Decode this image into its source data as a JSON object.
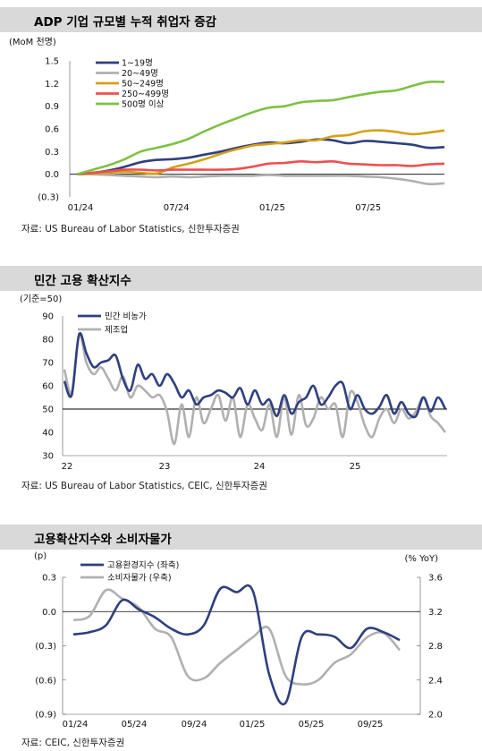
{
  "chart_data": [
    {
      "type": "line",
      "title": "ADP 기업 규모별 누적 취업자 증감",
      "unit_label": "(MoM 천명)",
      "x_ticks": [
        "01/24",
        "07/24",
        "01/25",
        "07/25"
      ],
      "y_ticks": [
        "1.5",
        "1.2",
        "0.9",
        "0.6",
        "0.3",
        "0.0",
        "(0.3)"
      ],
      "ylim": [
        -0.3,
        1.5
      ],
      "legend_position": "top-left",
      "series": [
        {
          "name": "1~19명",
          "color": "#2f3f7f",
          "values": [
            0.0,
            0.02,
            0.05,
            0.1,
            0.16,
            0.19,
            0.2,
            0.22,
            0.26,
            0.3,
            0.35,
            0.39,
            0.42,
            0.41,
            0.43,
            0.46,
            0.45,
            0.41,
            0.44,
            0.43,
            0.41,
            0.39,
            0.35,
            0.36
          ]
        },
        {
          "name": "20~49명",
          "color": "#b0b0b0",
          "values": [
            0.0,
            0.0,
            -0.01,
            -0.02,
            -0.03,
            -0.04,
            -0.03,
            -0.04,
            -0.03,
            -0.02,
            -0.02,
            -0.02,
            -0.01,
            -0.02,
            -0.02,
            -0.02,
            -0.02,
            -0.02,
            -0.03,
            -0.04,
            -0.06,
            -0.09,
            -0.13,
            -0.12
          ]
        },
        {
          "name": "50~249명",
          "color": "#d4a017",
          "values": [
            0.0,
            0.01,
            0.02,
            0.03,
            0.02,
            0.01,
            0.09,
            0.14,
            0.2,
            0.27,
            0.33,
            0.38,
            0.4,
            0.42,
            0.45,
            0.45,
            0.5,
            0.52,
            0.57,
            0.58,
            0.56,
            0.53,
            0.55,
            0.58
          ]
        },
        {
          "name": "250~499명",
          "color": "#ef4f4f",
          "values": [
            0.0,
            0.02,
            0.04,
            0.06,
            0.06,
            0.05,
            0.06,
            0.06,
            0.06,
            0.06,
            0.07,
            0.1,
            0.14,
            0.15,
            0.17,
            0.16,
            0.17,
            0.14,
            0.13,
            0.12,
            0.12,
            0.11,
            0.13,
            0.14
          ]
        },
        {
          "name": "500명 이상",
          "color": "#7dc143",
          "values": [
            0.0,
            0.06,
            0.12,
            0.2,
            0.3,
            0.35,
            0.4,
            0.47,
            0.57,
            0.66,
            0.74,
            0.82,
            0.88,
            0.9,
            0.95,
            0.97,
            0.98,
            1.02,
            1.06,
            1.09,
            1.11,
            1.17,
            1.22,
            1.22
          ]
        }
      ],
      "source": "자료: US Bureau of Labor Statistics, 신한투자증권"
    },
    {
      "type": "line",
      "title": "민간 고용 확산지수",
      "unit_label": "(기준=50)",
      "x_ticks": [
        "22",
        "23",
        "24",
        "25"
      ],
      "y_ticks": [
        "90",
        "80",
        "70",
        "60",
        "50",
        "40",
        "30"
      ],
      "ylim": [
        30,
        90
      ],
      "reference_line": 50,
      "legend_position": "top-left",
      "series": [
        {
          "name": "민간 비농가",
          "color": "#2f3f7f",
          "values": [
            62,
            56,
            82,
            74,
            68,
            70,
            71,
            73,
            63,
            58,
            69,
            63,
            65,
            60,
            65,
            61,
            55,
            58,
            52,
            55,
            56,
            58,
            57,
            55,
            59,
            52,
            58,
            52,
            54,
            47,
            56,
            48,
            53,
            55,
            60,
            52,
            55,
            60,
            61,
            50,
            56,
            50,
            48,
            51,
            56,
            48,
            53,
            48,
            47,
            55,
            49,
            55,
            50
          ]
        },
        {
          "name": "제조업",
          "color": "#b0b0b0",
          "values": [
            67,
            57,
            82,
            70,
            65,
            68,
            63,
            58,
            64,
            55,
            60,
            58,
            55,
            56,
            49,
            35,
            52,
            38,
            55,
            44,
            50,
            56,
            45,
            55,
            38,
            52,
            46,
            41,
            52,
            38,
            55,
            39,
            56,
            43,
            46,
            55,
            50,
            52,
            38,
            57,
            53,
            43,
            38,
            46,
            50,
            44,
            50,
            46,
            49,
            55,
            47,
            44,
            40
          ]
        }
      ],
      "source": "자료: US Bureau of Labor Statistics, CEIC, 신한투자증권"
    },
    {
      "type": "line",
      "title": "고용확산지수와 소비자물가",
      "left_unit_label": "(p)",
      "right_unit_label": "(% YoY)",
      "x_ticks": [
        "01/24",
        "05/24",
        "09/24",
        "01/25",
        "05/25",
        "09/25"
      ],
      "y_left_ticks": [
        "0.3",
        "0.0",
        "(0.3)",
        "(0.6)",
        "(0.9)"
      ],
      "y_right_ticks": [
        "3.6",
        "3.2",
        "2.8",
        "2.4",
        "2.0"
      ],
      "ylim_left": [
        -0.9,
        0.3
      ],
      "ylim_right": [
        2.0,
        3.6
      ],
      "legend_position": "top-left",
      "series": [
        {
          "name": "고용환경지수 (좌축)",
          "color": "#2f3f7f",
          "axis": "left",
          "values": [
            -0.2,
            -0.18,
            -0.12,
            0.1,
            0.02,
            -0.05,
            -0.15,
            -0.2,
            -0.12,
            0.2,
            0.17,
            0.18,
            -0.55,
            -0.8,
            -0.22,
            -0.2,
            -0.22,
            -0.32,
            -0.15,
            -0.18,
            -0.25
          ]
        },
        {
          "name": "소비자물가 (우축)",
          "color": "#b0b0b0",
          "axis": "right",
          "values": [
            3.1,
            3.15,
            3.45,
            3.35,
            3.25,
            3.0,
            2.9,
            2.45,
            2.42,
            2.6,
            2.75,
            2.9,
            3.0,
            2.45,
            2.35,
            2.4,
            2.6,
            2.7,
            2.9,
            2.95,
            2.75
          ]
        }
      ],
      "source": "자료: CEIC, 신한투자증권"
    }
  ]
}
